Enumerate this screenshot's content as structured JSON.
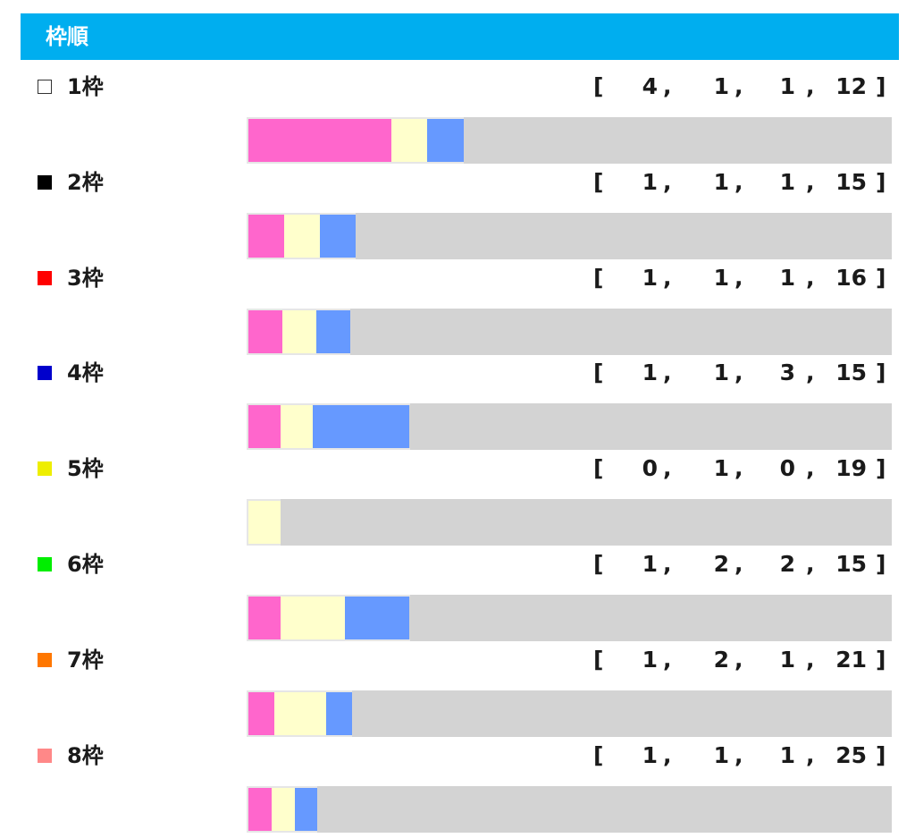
{
  "header": {
    "title": "枠順"
  },
  "colors": {
    "header_bg": "#00aeef",
    "first": "#ff66cc",
    "second": "#ffffcc",
    "third": "#6699ff",
    "track": "#d3d3d3"
  },
  "chart_data": {
    "type": "bar",
    "stacked": true,
    "orientation": "horizontal",
    "categories": [
      "1枠",
      "2枠",
      "3枠",
      "4枠",
      "5枠",
      "6枠",
      "7枠",
      "8枠"
    ],
    "category_colors": [
      "#ffffff",
      "#000000",
      "#ff0000",
      "#0000cc",
      "#eeee00",
      "#00ee00",
      "#ff7700",
      "#ff8888"
    ],
    "category_borders": [
      "#333333",
      "#000000",
      "#ff0000",
      "#0000cc",
      "#eeee00",
      "#00ee00",
      "#ff7700",
      "#ff8888"
    ],
    "series": [
      {
        "values": [
          4,
          1,
          1,
          1,
          0,
          1,
          1,
          1
        ],
        "color": "#ff66cc"
      },
      {
        "values": [
          1,
          1,
          1,
          1,
          1,
          2,
          2,
          1
        ],
        "color": "#ffffcc"
      },
      {
        "values": [
          1,
          1,
          1,
          3,
          0,
          2,
          1,
          1
        ],
        "color": "#6699ff"
      },
      {
        "values": [
          12,
          15,
          16,
          15,
          19,
          15,
          21,
          25
        ],
        "color": "#d3d3d3"
      }
    ],
    "records": [
      [
        4,
        1,
        1,
        12
      ],
      [
        1,
        1,
        1,
        15
      ],
      [
        1,
        1,
        1,
        16
      ],
      [
        1,
        1,
        3,
        15
      ],
      [
        0,
        1,
        0,
        19
      ],
      [
        1,
        2,
        2,
        15
      ],
      [
        1,
        2,
        1,
        21
      ],
      [
        1,
        1,
        1,
        25
      ]
    ],
    "record_format": {
      "open": "[",
      "separator": ",",
      "close": "]"
    }
  }
}
